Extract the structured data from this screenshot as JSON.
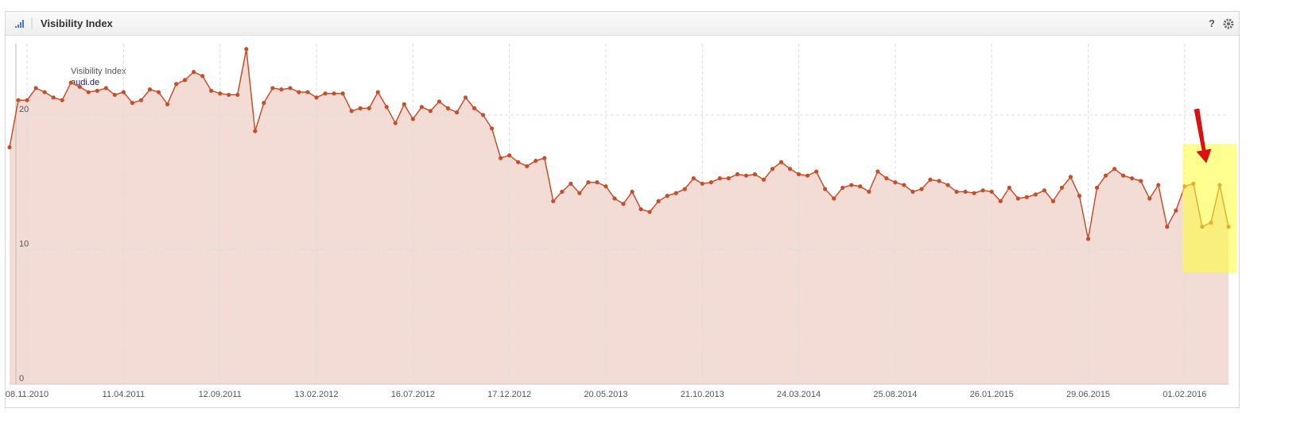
{
  "chart_data": {
    "type": "area",
    "title": "Visibility Index",
    "legend_title": "Visibility Index",
    "help": "?",
    "categories": [
      null,
      null,
      "08.11.2010",
      null,
      null,
      null,
      null,
      null,
      null,
      null,
      null,
      null,
      null,
      "11.04.2011",
      null,
      null,
      null,
      null,
      null,
      null,
      null,
      null,
      null,
      null,
      "12.09.2011",
      null,
      null,
      null,
      null,
      null,
      null,
      null,
      null,
      null,
      null,
      "13.02.2012",
      null,
      null,
      null,
      null,
      null,
      null,
      null,
      null,
      null,
      null,
      "16.07.2012",
      null,
      null,
      null,
      null,
      null,
      null,
      null,
      null,
      null,
      null,
      "17.12.2012",
      null,
      null,
      null,
      null,
      null,
      null,
      null,
      null,
      null,
      null,
      "20.05.2013",
      null,
      null,
      null,
      null,
      null,
      null,
      null,
      null,
      null,
      null,
      "21.10.2013",
      null,
      null,
      null,
      null,
      null,
      null,
      null,
      null,
      null,
      null,
      "24.03.2014",
      null,
      null,
      null,
      null,
      null,
      null,
      null,
      null,
      null,
      null,
      "25.08.2014",
      null,
      null,
      null,
      null,
      null,
      null,
      null,
      null,
      null,
      null,
      "26.01.2015",
      null,
      null,
      null,
      null,
      null,
      null,
      null,
      null,
      null,
      null,
      "29.06.2015",
      null,
      null,
      null,
      null,
      null,
      null,
      null,
      null,
      null,
      null,
      "01.02.2016",
      null,
      null,
      null,
      null,
      null
    ],
    "series": [
      {
        "name": "audi.de",
        "color": "#c4502b",
        "fill": "#f2dcd5",
        "values": [
          17.6,
          21.1,
          21.1,
          22.0,
          21.7,
          21.3,
          21.1,
          22.4,
          22.1,
          21.7,
          21.8,
          22.0,
          21.5,
          21.7,
          20.9,
          21.1,
          21.9,
          21.7,
          20.8,
          22.3,
          22.6,
          23.2,
          22.9,
          21.8,
          21.6,
          21.5,
          21.5,
          24.9,
          18.8,
          20.9,
          22.0,
          21.9,
          22.0,
          21.7,
          21.7,
          21.3,
          21.6,
          21.6,
          21.6,
          20.3,
          20.5,
          20.5,
          21.7,
          20.6,
          19.4,
          20.8,
          19.7,
          20.6,
          20.3,
          21.0,
          20.5,
          20.2,
          21.3,
          20.5,
          20.0,
          19.0,
          16.8,
          17.0,
          16.5,
          16.2,
          16.6,
          16.8,
          13.6,
          14.3,
          14.9,
          14.2,
          15.0,
          15.0,
          14.7,
          13.8,
          13.4,
          14.3,
          13.0,
          12.8,
          13.6,
          14.0,
          14.2,
          14.5,
          15.3,
          14.9,
          15.0,
          15.3,
          15.3,
          15.6,
          15.5,
          15.6,
          15.2,
          16.0,
          16.5,
          16.0,
          15.6,
          15.5,
          15.8,
          14.5,
          13.8,
          14.6,
          14.8,
          14.7,
          14.3,
          15.8,
          15.3,
          15.0,
          14.8,
          14.3,
          14.5,
          15.2,
          15.1,
          14.8,
          14.3,
          14.3,
          14.2,
          14.4,
          14.3,
          13.6,
          14.6,
          13.8,
          13.9,
          14.1,
          14.4,
          13.6,
          14.6,
          15.4,
          14.0,
          10.8,
          14.6,
          15.5,
          16.0,
          15.5,
          15.3,
          15.1,
          13.8,
          14.8,
          11.7,
          12.9,
          14.7,
          14.9,
          11.7,
          12.0,
          14.8,
          11.7
        ]
      }
    ],
    "ylim": [
      0,
      25.3
    ],
    "yticks": [
      0,
      10,
      20
    ],
    "grid": true
  }
}
